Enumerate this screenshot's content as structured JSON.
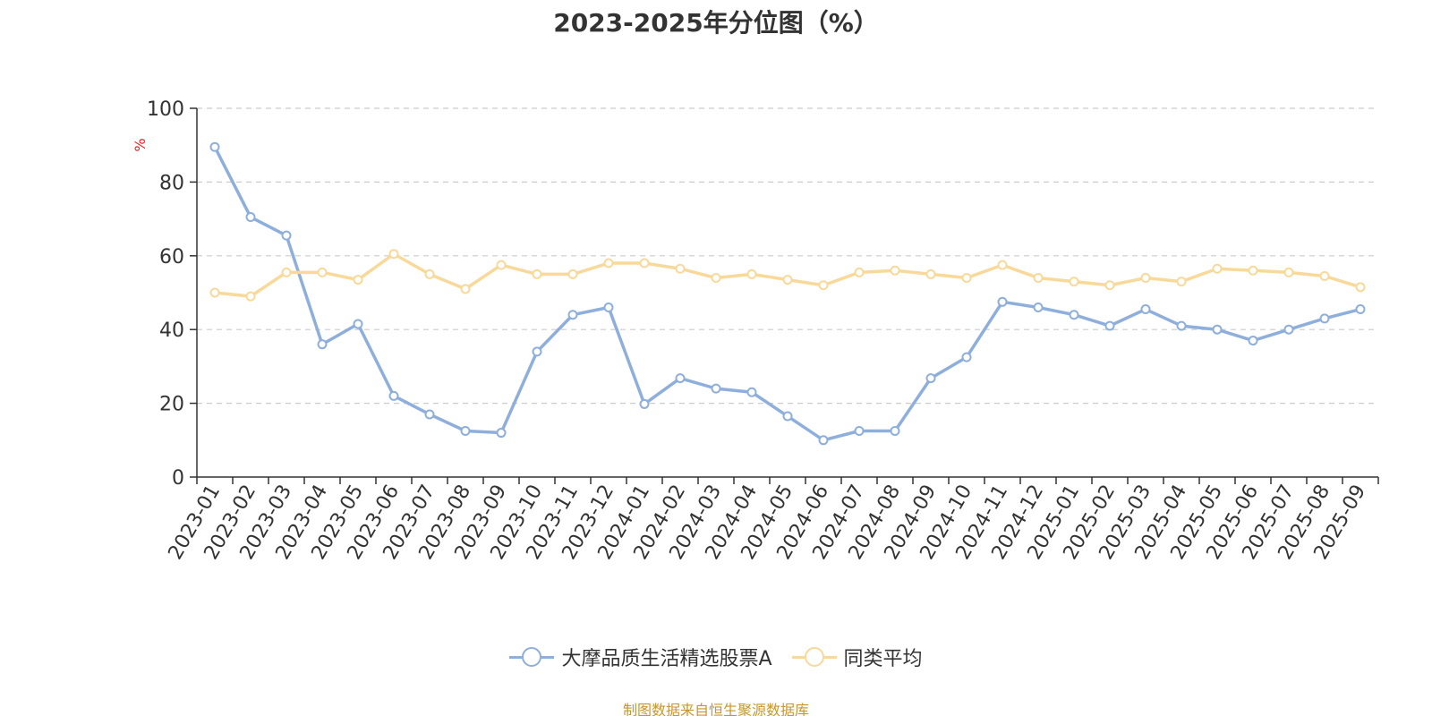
{
  "chart_data": {
    "type": "line",
    "title": "2023-2025年分位图（%）",
    "ylabel": "%",
    "xlabel": "",
    "ylim": [
      0,
      100
    ],
    "yticks": [
      0,
      20,
      40,
      60,
      80,
      100
    ],
    "grid": true,
    "legend_position": "bottom",
    "categories": [
      "2023-01",
      "2023-02",
      "2023-03",
      "2023-04",
      "2023-05",
      "2023-06",
      "2023-07",
      "2023-08",
      "2023-09",
      "2023-10",
      "2023-11",
      "2023-12",
      "2024-01",
      "2024-02",
      "2024-03",
      "2024-04",
      "2024-05",
      "2024-06",
      "2024-07",
      "2024-08",
      "2024-09",
      "2024-10",
      "2024-11",
      "2024-12",
      "2025-01",
      "2025-02",
      "2025-03",
      "2025-04",
      "2025-05",
      "2025-06",
      "2025-07",
      "2025-08",
      "2025-09"
    ],
    "series": [
      {
        "name": "大摩品质生活精选股票A",
        "color": "#8eaedc",
        "values": [
          89.5,
          70.5,
          65.5,
          36.0,
          41.5,
          22.0,
          17.0,
          12.5,
          12.0,
          34.0,
          44.0,
          46.0,
          19.8,
          26.8,
          24.0,
          23.0,
          16.5,
          10.0,
          12.5,
          12.5,
          26.8,
          32.5,
          47.5,
          46.0,
          44.0,
          41.0,
          45.5,
          41.0,
          40.0,
          37.0,
          40.0,
          43.0,
          45.5
        ]
      },
      {
        "name": "同类平均",
        "color": "#f8d99a",
        "values": [
          50.0,
          49.0,
          55.5,
          55.5,
          53.5,
          60.5,
          55.0,
          51.0,
          57.5,
          55.0,
          55.0,
          58.0,
          58.0,
          56.5,
          54.0,
          55.0,
          53.5,
          52.0,
          55.5,
          56.0,
          55.0,
          54.0,
          57.5,
          54.0,
          53.0,
          52.0,
          54.0,
          53.0,
          56.5,
          56.0,
          55.5,
          54.5,
          51.5
        ]
      }
    ]
  },
  "source": "制图数据来自恒生聚源数据库"
}
